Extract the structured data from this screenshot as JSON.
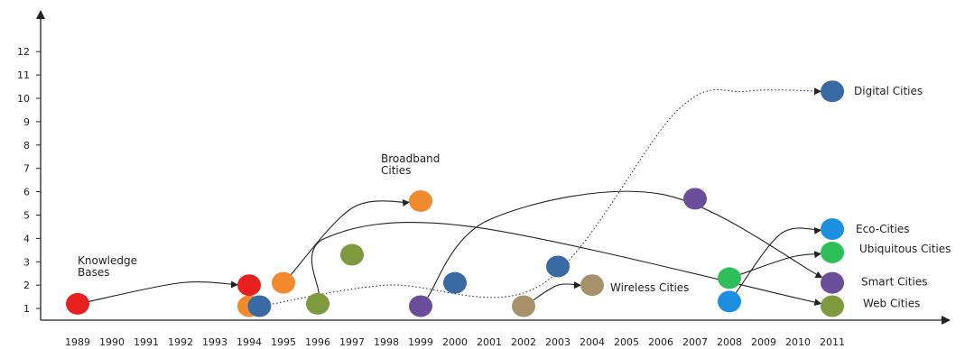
{
  "chart_data": {
    "type": "scatter",
    "title": "",
    "xlabel": "",
    "ylabel": "",
    "x_ticks": [
      "1989",
      "1990",
      "1991",
      "1992",
      "1993",
      "1994",
      "1995",
      "1996",
      "1997",
      "1998",
      "1999",
      "2000",
      "2001",
      "2002",
      "2003",
      "2004",
      "2005",
      "2006",
      "2007",
      "2008",
      "2009",
      "2010",
      "2011"
    ],
    "y_ticks": [
      1,
      2,
      3,
      4,
      5,
      6,
      7,
      8,
      9,
      10,
      11,
      12
    ],
    "xlim": [
      1989,
      2011
    ],
    "ylim": [
      0,
      12
    ],
    "grid": false,
    "points": [
      {
        "year": 1989,
        "y": 1.2,
        "color": "#e8201f"
      },
      {
        "year": 1994,
        "y": 1.1,
        "color": "#f08a2c"
      },
      {
        "year": 1994,
        "y": 2.0,
        "color": "#e8201f"
      },
      {
        "year": 1994.3,
        "y": 1.1,
        "color": "#3a6aa3"
      },
      {
        "year": 1995,
        "y": 2.1,
        "color": "#f08a2c"
      },
      {
        "year": 1996,
        "y": 1.2,
        "color": "#7d9a3e"
      },
      {
        "year": 1997,
        "y": 3.3,
        "color": "#7d9a3e"
      },
      {
        "year": 1999,
        "y": 5.6,
        "color": "#f08a2c"
      },
      {
        "year": 1999,
        "y": 1.1,
        "color": "#6a4e9a"
      },
      {
        "year": 2000,
        "y": 2.1,
        "color": "#3a6aa3"
      },
      {
        "year": 2002,
        "y": 1.1,
        "color": "#a7916b"
      },
      {
        "year": 2003,
        "y": 2.8,
        "color": "#3a6aa3"
      },
      {
        "year": 2004,
        "y": 2.0,
        "color": "#a7916b"
      },
      {
        "year": 2007,
        "y": 5.7,
        "color": "#6a4e9a"
      },
      {
        "year": 2008,
        "y": 2.3,
        "color": "#2fbf5a"
      },
      {
        "year": 2008,
        "y": 1.3,
        "color": "#1e8ee0"
      },
      {
        "year": 2011,
        "y": 10.3,
        "color": "#3a6aa3"
      },
      {
        "year": 2011,
        "y": 4.4,
        "color": "#1e8ee0"
      },
      {
        "year": 2011,
        "y": 3.4,
        "color": "#2fbf5a"
      },
      {
        "year": 2011,
        "y": 2.1,
        "color": "#6a4e9a"
      },
      {
        "year": 2011,
        "y": 1.1,
        "color": "#7d9a3e"
      }
    ],
    "arrows": [
      {
        "style": "solid",
        "from": [
          1989,
          1.2
        ],
        "via": [
          [
            1992,
            2.1
          ]
        ],
        "to": [
          1994,
          2.0
        ]
      },
      {
        "style": "solid",
        "from": [
          1995,
          2.1
        ],
        "via": [
          [
            1997,
            5.3
          ]
        ],
        "to": [
          1999,
          5.6
        ]
      },
      {
        "style": "solid",
        "from": [
          1996,
          1.2
        ],
        "via": [
          [
            1996.2,
            4.0
          ],
          [
            2000.5,
            4.5
          ]
        ],
        "to": [
          2011,
          1.1
        ]
      },
      {
        "style": "solid",
        "from": [
          1999,
          1.1
        ],
        "via": [
          [
            2001,
            4.8
          ],
          [
            2006,
            5.9
          ]
        ],
        "to": [
          2011,
          2.1
        ]
      },
      {
        "style": "solid",
        "from": [
          2002,
          1.1
        ],
        "via": [
          [
            2003,
            2.0
          ]
        ],
        "to": [
          2004,
          2.0
        ]
      },
      {
        "style": "solid",
        "from": [
          2008,
          1.3
        ],
        "via": [
          [
            2009.5,
            4.2
          ]
        ],
        "to": [
          2011,
          4.4
        ]
      },
      {
        "style": "solid",
        "from": [
          2008,
          2.3
        ],
        "via": [
          [
            2009.8,
            3.2
          ]
        ],
        "to": [
          2011,
          3.4
        ]
      },
      {
        "style": "dotted",
        "from": [
          1994.3,
          1.1
        ],
        "via": [
          [
            1998,
            2.0
          ],
          [
            2002.5,
            2.0
          ],
          [
            2006.5,
            9.5
          ],
          [
            2008.5,
            10.3
          ]
        ],
        "to": [
          2011,
          10.3
        ]
      }
    ],
    "annotations": [
      {
        "lines": [
          "Knowledge",
          "Bases"
        ],
        "x": 1989,
        "y": 1.2
      },
      {
        "lines": [
          "Broadband",
          "Cities"
        ],
        "x": 1999,
        "y": 5.6
      },
      {
        "lines": [
          "Wireless Cities"
        ],
        "x": 2004,
        "y": 2.0
      },
      {
        "lines": [
          "Digital Cities"
        ],
        "x": 2011,
        "y": 10.3
      },
      {
        "lines": [
          "Eco-Cities"
        ],
        "x": 2011,
        "y": 4.4
      },
      {
        "lines": [
          "Ubiquitous Cities"
        ],
        "x": 2011,
        "y": 3.4
      },
      {
        "lines": [
          "Smart Cities"
        ],
        "x": 2011,
        "y": 2.1
      },
      {
        "lines": [
          "Web Cities"
        ],
        "x": 2011,
        "y": 1.1
      }
    ]
  }
}
